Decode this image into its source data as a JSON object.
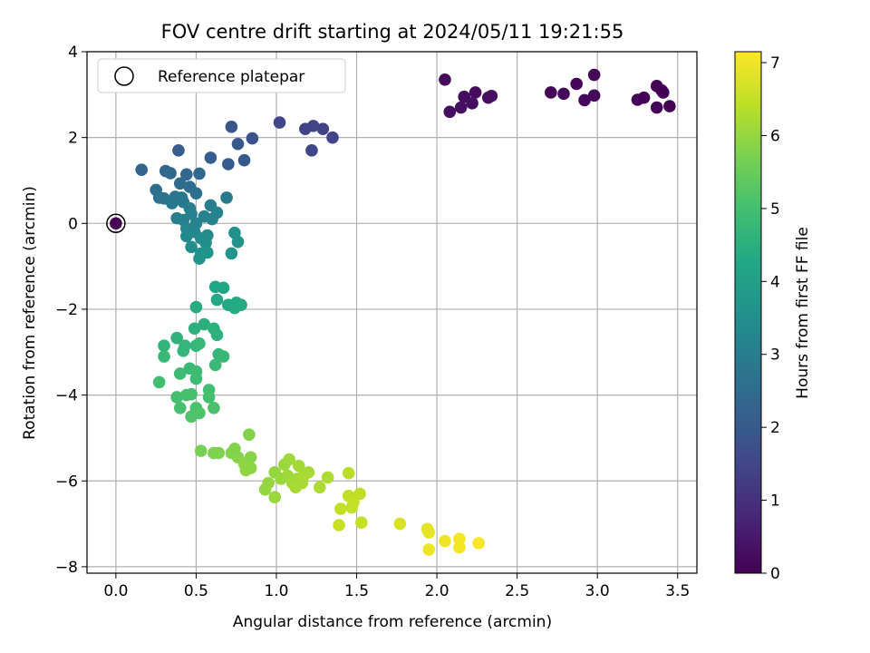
{
  "chart_data": {
    "type": "scatter",
    "title": "FOV centre drift starting at 2024/05/11 19:21:55",
    "xlabel": "Angular distance from reference (arcmin)",
    "ylabel": "Rotation from reference (arcmin)",
    "xlim": [
      -0.18,
      3.62
    ],
    "ylim": [
      -8.15,
      4.0
    ],
    "xticks": [
      0.0,
      0.5,
      1.0,
      1.5,
      2.0,
      2.5,
      3.0,
      3.5
    ],
    "xtick_labels": [
      "0.0",
      "0.5",
      "1.0",
      "1.5",
      "2.0",
      "2.5",
      "3.0",
      "3.5"
    ],
    "yticks": [
      -8,
      -6,
      -4,
      -2,
      0,
      2,
      4
    ],
    "ytick_labels": [
      "−8",
      "−6",
      "−4",
      "−2",
      "0",
      "2",
      "4"
    ],
    "grid": true,
    "legend": {
      "entries": [
        "Reference platepar"
      ],
      "placement": "top-left"
    },
    "colorbar": {
      "label": "Hours from first FF file",
      "range": [
        0,
        7.15
      ],
      "ticks": [
        0,
        1,
        2,
        3,
        4,
        5,
        6,
        7
      ],
      "tick_labels": [
        "0",
        "1",
        "2",
        "3",
        "4",
        "5",
        "6",
        "7"
      ],
      "colormap": "viridis"
    },
    "colors": {
      "reference_marker_edge": "#000000",
      "grid": "#b0b0b0"
    },
    "reference_point": {
      "x": 0.0,
      "y": 0.0
    },
    "points": [
      {
        "x": 0.0,
        "y": 0.0,
        "h": 0.0
      },
      {
        "x": 2.05,
        "y": 3.35,
        "h": 0.2
      },
      {
        "x": 2.08,
        "y": 2.6,
        "h": 0.25
      },
      {
        "x": 2.15,
        "y": 2.7,
        "h": 0.3
      },
      {
        "x": 2.17,
        "y": 2.95,
        "h": 0.25
      },
      {
        "x": 2.22,
        "y": 2.8,
        "h": 0.3
      },
      {
        "x": 2.24,
        "y": 3.05,
        "h": 0.2
      },
      {
        "x": 2.32,
        "y": 2.93,
        "h": 0.25
      },
      {
        "x": 2.34,
        "y": 2.97,
        "h": 0.3
      },
      {
        "x": 2.71,
        "y": 3.05,
        "h": 0.1
      },
      {
        "x": 2.79,
        "y": 3.02,
        "h": 0.15
      },
      {
        "x": 2.87,
        "y": 3.25,
        "h": 0.1
      },
      {
        "x": 2.92,
        "y": 2.87,
        "h": 0.15
      },
      {
        "x": 2.98,
        "y": 3.46,
        "h": 0.1
      },
      {
        "x": 2.98,
        "y": 2.98,
        "h": 0.15
      },
      {
        "x": 3.25,
        "y": 2.88,
        "h": 0.05
      },
      {
        "x": 3.29,
        "y": 2.93,
        "h": 0.05
      },
      {
        "x": 3.37,
        "y": 3.2,
        "h": 0.0
      },
      {
        "x": 3.37,
        "y": 2.7,
        "h": 0.05
      },
      {
        "x": 3.4,
        "y": 3.1,
        "h": 0.05
      },
      {
        "x": 3.41,
        "y": 3.05,
        "h": 0.0
      },
      {
        "x": 3.45,
        "y": 2.73,
        "h": 0.05
      },
      {
        "x": 1.02,
        "y": 2.35,
        "h": 1.5
      },
      {
        "x": 1.18,
        "y": 2.2,
        "h": 1.4
      },
      {
        "x": 1.23,
        "y": 2.27,
        "h": 1.45
      },
      {
        "x": 1.29,
        "y": 2.2,
        "h": 1.4
      },
      {
        "x": 1.35,
        "y": 2.0,
        "h": 1.45
      },
      {
        "x": 1.22,
        "y": 1.7,
        "h": 1.5
      },
      {
        "x": 0.72,
        "y": 2.25,
        "h": 1.9
      },
      {
        "x": 0.76,
        "y": 1.85,
        "h": 1.95
      },
      {
        "x": 0.85,
        "y": 1.98,
        "h": 1.85
      },
      {
        "x": 0.8,
        "y": 1.47,
        "h": 2.0
      },
      {
        "x": 0.7,
        "y": 1.38,
        "h": 2.05
      },
      {
        "x": 0.59,
        "y": 1.53,
        "h": 2.1
      },
      {
        "x": 0.39,
        "y": 1.7,
        "h": 2.1
      },
      {
        "x": 0.16,
        "y": 1.25,
        "h": 2.3
      },
      {
        "x": 0.31,
        "y": 1.22,
        "h": 2.35
      },
      {
        "x": 0.34,
        "y": 1.17,
        "h": 2.4
      },
      {
        "x": 0.44,
        "y": 1.14,
        "h": 2.35
      },
      {
        "x": 0.52,
        "y": 1.16,
        "h": 2.4
      },
      {
        "x": 0.4,
        "y": 0.93,
        "h": 2.5
      },
      {
        "x": 0.46,
        "y": 0.85,
        "h": 2.55
      },
      {
        "x": 0.25,
        "y": 0.78,
        "h": 2.6
      },
      {
        "x": 0.5,
        "y": 0.7,
        "h": 2.6
      },
      {
        "x": 0.27,
        "y": 0.6,
        "h": 2.7
      },
      {
        "x": 0.3,
        "y": 0.58,
        "h": 2.75
      },
      {
        "x": 0.37,
        "y": 0.62,
        "h": 2.8
      },
      {
        "x": 0.41,
        "y": 0.6,
        "h": 2.85
      },
      {
        "x": 0.69,
        "y": 0.6,
        "h": 2.85
      },
      {
        "x": 0.35,
        "y": 0.47,
        "h": 2.9
      },
      {
        "x": 0.42,
        "y": 0.5,
        "h": 2.9
      },
      {
        "x": 0.46,
        "y": 0.35,
        "h": 3.0
      },
      {
        "x": 0.59,
        "y": 0.42,
        "h": 3.0
      },
      {
        "x": 0.38,
        "y": 0.12,
        "h": 3.05
      },
      {
        "x": 0.42,
        "y": 0.08,
        "h": 3.1
      },
      {
        "x": 0.47,
        "y": 0.22,
        "h": 3.1
      },
      {
        "x": 0.5,
        "y": 0.0,
        "h": 3.15
      },
      {
        "x": 0.55,
        "y": 0.16,
        "h": 3.15
      },
      {
        "x": 0.6,
        "y": 0.1,
        "h": 3.2
      },
      {
        "x": 0.63,
        "y": 0.25,
        "h": 3.15
      },
      {
        "x": 0.44,
        "y": -0.12,
        "h": 3.25
      },
      {
        "x": 0.49,
        "y": -0.2,
        "h": 3.3
      },
      {
        "x": 0.44,
        "y": -0.3,
        "h": 3.35
      },
      {
        "x": 0.53,
        "y": -0.35,
        "h": 3.4
      },
      {
        "x": 0.57,
        "y": -0.28,
        "h": 3.4
      },
      {
        "x": 0.47,
        "y": -0.55,
        "h": 3.5
      },
      {
        "x": 0.56,
        "y": -0.45,
        "h": 3.5
      },
      {
        "x": 0.53,
        "y": -0.7,
        "h": 3.6
      },
      {
        "x": 0.52,
        "y": -0.82,
        "h": 3.65
      },
      {
        "x": 0.57,
        "y": -0.68,
        "h": 3.7
      },
      {
        "x": 0.74,
        "y": -0.22,
        "h": 3.6
      },
      {
        "x": 0.76,
        "y": -0.43,
        "h": 3.65
      },
      {
        "x": 0.72,
        "y": -0.7,
        "h": 3.7
      },
      {
        "x": 0.62,
        "y": -1.48,
        "h": 4.2
      },
      {
        "x": 0.67,
        "y": -1.5,
        "h": 4.25
      },
      {
        "x": 0.63,
        "y": -1.78,
        "h": 4.3
      },
      {
        "x": 0.7,
        "y": -1.9,
        "h": 4.3
      },
      {
        "x": 0.74,
        "y": -1.97,
        "h": 4.35
      },
      {
        "x": 0.75,
        "y": -1.85,
        "h": 4.3
      },
      {
        "x": 0.78,
        "y": -1.9,
        "h": 4.35
      },
      {
        "x": 0.5,
        "y": -1.95,
        "h": 4.4
      },
      {
        "x": 0.49,
        "y": -2.45,
        "h": 4.5
      },
      {
        "x": 0.55,
        "y": -2.35,
        "h": 4.5
      },
      {
        "x": 0.61,
        "y": -2.45,
        "h": 4.55
      },
      {
        "x": 0.63,
        "y": -2.6,
        "h": 4.55
      },
      {
        "x": 0.38,
        "y": -2.67,
        "h": 4.6
      },
      {
        "x": 0.3,
        "y": -2.85,
        "h": 4.65
      },
      {
        "x": 0.43,
        "y": -2.85,
        "h": 4.7
      },
      {
        "x": 0.42,
        "y": -2.97,
        "h": 4.7
      },
      {
        "x": 0.5,
        "y": -2.85,
        "h": 4.7
      },
      {
        "x": 0.52,
        "y": -2.8,
        "h": 4.75
      },
      {
        "x": 0.3,
        "y": -3.1,
        "h": 4.75
      },
      {
        "x": 0.64,
        "y": -3.05,
        "h": 4.7
      },
      {
        "x": 0.67,
        "y": -3.1,
        "h": 4.75
      },
      {
        "x": 0.62,
        "y": -3.3,
        "h": 4.8
      },
      {
        "x": 0.46,
        "y": -3.38,
        "h": 4.8
      },
      {
        "x": 0.4,
        "y": -3.5,
        "h": 4.85
      },
      {
        "x": 0.5,
        "y": -3.45,
        "h": 4.85
      },
      {
        "x": 0.5,
        "y": -3.62,
        "h": 4.9
      },
      {
        "x": 0.27,
        "y": -3.7,
        "h": 4.95
      },
      {
        "x": 0.58,
        "y": -3.88,
        "h": 4.95
      },
      {
        "x": 0.58,
        "y": -4.05,
        "h": 5.0
      },
      {
        "x": 0.38,
        "y": -4.05,
        "h": 5.0
      },
      {
        "x": 0.44,
        "y": -4.0,
        "h": 5.0
      },
      {
        "x": 0.47,
        "y": -3.98,
        "h": 5.05
      },
      {
        "x": 0.4,
        "y": -4.3,
        "h": 5.05
      },
      {
        "x": 0.5,
        "y": -4.3,
        "h": 5.1
      },
      {
        "x": 0.61,
        "y": -4.3,
        "h": 5.1
      },
      {
        "x": 0.47,
        "y": -4.5,
        "h": 5.15
      },
      {
        "x": 0.52,
        "y": -4.42,
        "h": 5.15
      },
      {
        "x": 0.53,
        "y": -5.3,
        "h": 5.7
      },
      {
        "x": 0.61,
        "y": -5.35,
        "h": 5.75
      },
      {
        "x": 0.64,
        "y": -5.35,
        "h": 5.75
      },
      {
        "x": 0.74,
        "y": -5.25,
        "h": 5.8
      },
      {
        "x": 0.72,
        "y": -5.35,
        "h": 5.8
      },
      {
        "x": 0.76,
        "y": -5.45,
        "h": 5.85
      },
      {
        "x": 0.83,
        "y": -4.92,
        "h": 5.8
      },
      {
        "x": 0.84,
        "y": -5.45,
        "h": 5.85
      },
      {
        "x": 0.8,
        "y": -5.6,
        "h": 5.9
      },
      {
        "x": 0.84,
        "y": -5.7,
        "h": 5.9
      },
      {
        "x": 0.81,
        "y": -5.75,
        "h": 5.95
      },
      {
        "x": 0.93,
        "y": -6.2,
        "h": 6.0
      },
      {
        "x": 0.95,
        "y": -6.05,
        "h": 6.0
      },
      {
        "x": 0.99,
        "y": -6.38,
        "h": 6.05
      },
      {
        "x": 0.99,
        "y": -5.8,
        "h": 6.0
      },
      {
        "x": 1.03,
        "y": -5.95,
        "h": 6.05
      },
      {
        "x": 1.05,
        "y": -5.62,
        "h": 6.05
      },
      {
        "x": 1.08,
        "y": -5.5,
        "h": 6.1
      },
      {
        "x": 1.07,
        "y": -5.88,
        "h": 6.1
      },
      {
        "x": 1.1,
        "y": -6.05,
        "h": 6.15
      },
      {
        "x": 1.13,
        "y": -5.95,
        "h": 6.15
      },
      {
        "x": 1.14,
        "y": -5.65,
        "h": 6.15
      },
      {
        "x": 1.12,
        "y": -6.15,
        "h": 6.2
      },
      {
        "x": 1.16,
        "y": -6.05,
        "h": 6.2
      },
      {
        "x": 1.2,
        "y": -5.8,
        "h": 6.2
      },
      {
        "x": 1.17,
        "y": -5.88,
        "h": 6.2
      },
      {
        "x": 1.27,
        "y": -6.15,
        "h": 6.25
      },
      {
        "x": 1.32,
        "y": -5.92,
        "h": 6.25
      },
      {
        "x": 1.45,
        "y": -5.82,
        "h": 6.4
      },
      {
        "x": 1.4,
        "y": -6.65,
        "h": 6.5
      },
      {
        "x": 1.39,
        "y": -7.03,
        "h": 6.55
      },
      {
        "x": 1.45,
        "y": -6.35,
        "h": 6.45
      },
      {
        "x": 1.48,
        "y": -6.5,
        "h": 6.5
      },
      {
        "x": 1.47,
        "y": -6.62,
        "h": 6.5
      },
      {
        "x": 1.52,
        "y": -6.3,
        "h": 6.45
      },
      {
        "x": 1.53,
        "y": -6.97,
        "h": 6.55
      },
      {
        "x": 1.77,
        "y": -7.0,
        "h": 6.75
      },
      {
        "x": 1.94,
        "y": -7.12,
        "h": 6.85
      },
      {
        "x": 1.95,
        "y": -7.2,
        "h": 6.9
      },
      {
        "x": 1.95,
        "y": -7.6,
        "h": 6.95
      },
      {
        "x": 2.05,
        "y": -7.4,
        "h": 7.0
      },
      {
        "x": 2.14,
        "y": -7.35,
        "h": 7.05
      },
      {
        "x": 2.14,
        "y": -7.55,
        "h": 7.05
      },
      {
        "x": 2.26,
        "y": -7.45,
        "h": 7.1
      }
    ]
  }
}
